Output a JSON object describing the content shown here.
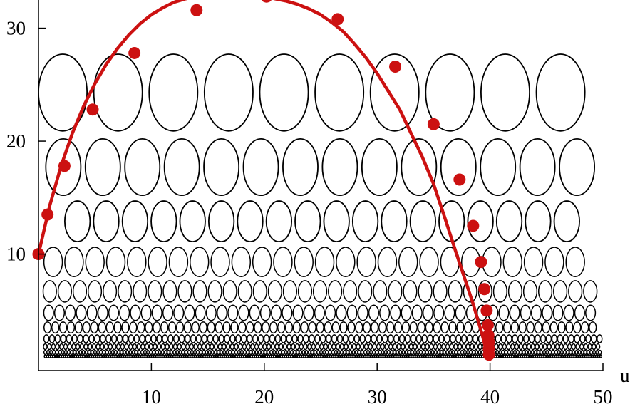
{
  "chart_data": {
    "type": "scatter",
    "title": "",
    "xlabel": "u",
    "ylabel": "",
    "xlim": [
      0,
      50
    ],
    "ylim": [
      -0.5,
      33
    ],
    "x_ticks": [
      10,
      20,
      30,
      40,
      50
    ],
    "y_ticks": [
      10,
      20,
      30
    ],
    "grid": false,
    "legend": "none",
    "colors": {
      "curve": "#cc1111",
      "ellipse": "#000000",
      "axis": "#000000"
    },
    "ellipse_rows": [
      {
        "y_center": 24.3,
        "y_radius": 3.4,
        "x_radius": 2.15,
        "x_start": 2.15,
        "x_step": 4.9,
        "x_max": 48
      },
      {
        "y_center": 17.7,
        "y_radius": 2.5,
        "x_radius": 1.55,
        "x_start": 2.2,
        "x_step": 3.5,
        "x_max": 49
      },
      {
        "y_center": 12.9,
        "y_radius": 1.8,
        "x_radius": 1.12,
        "x_start": 0.9,
        "x_step": 2.55,
        "x_max": 50
      },
      {
        "y_center": 9.3,
        "y_radius": 1.3,
        "x_radius": 0.82,
        "x_start": 1.3,
        "x_step": 1.85,
        "x_max": 50
      },
      {
        "y_center": 6.7,
        "y_radius": 0.95,
        "x_radius": 0.59,
        "x_start": 1.0,
        "x_step": 1.33,
        "x_max": 50
      },
      {
        "y_center": 4.8,
        "y_radius": 0.68,
        "x_radius": 0.43,
        "x_start": 0.9,
        "x_step": 0.96,
        "x_max": 50
      },
      {
        "y_center": 3.5,
        "y_radius": 0.49,
        "x_radius": 0.31,
        "x_start": 0.8,
        "x_step": 0.69,
        "x_max": 50
      },
      {
        "y_center": 2.5,
        "y_radius": 0.35,
        "x_radius": 0.22,
        "x_start": 0.7,
        "x_step": 0.5,
        "x_max": 50
      },
      {
        "y_center": 1.8,
        "y_radius": 0.25,
        "x_radius": 0.16,
        "x_start": 0.6,
        "x_step": 0.36,
        "x_max": 50
      },
      {
        "y_center": 1.3,
        "y_radius": 0.18,
        "x_radius": 0.115,
        "x_start": 0.6,
        "x_step": 0.26,
        "x_max": 50
      },
      {
        "y_center": 0.95,
        "y_radius": 0.13,
        "x_radius": 0.083,
        "x_start": 0.6,
        "x_step": 0.19,
        "x_max": 50
      }
    ],
    "series": [
      {
        "type": "line",
        "x": [
          0,
          1,
          2,
          3,
          4,
          5,
          6,
          7,
          8,
          9,
          10,
          11,
          12,
          13,
          14,
          15,
          16,
          17,
          18,
          19,
          20,
          21,
          22,
          23,
          24,
          25,
          26,
          27,
          28,
          29,
          30,
          31,
          32,
          33,
          34,
          35,
          36,
          37,
          37.5,
          38,
          38.5,
          39,
          39.3,
          39.6,
          39.8,
          40
        ],
        "y": [
          10,
          14.3,
          17.8,
          20.7,
          23.1,
          25.1,
          26.8,
          28.2,
          29.4,
          30.4,
          31.2,
          31.8,
          32.3,
          32.6,
          32.8,
          32.9,
          32.9,
          32.9,
          32.9,
          32.8,
          32.8,
          32.6,
          32.4,
          32.1,
          31.7,
          31.2,
          30.5,
          29.7,
          28.6,
          27.4,
          26.0,
          24.4,
          22.8,
          20.7,
          18.6,
          16.2,
          13.2,
          10.1,
          8.6,
          7.1,
          5.6,
          3.9,
          2.9,
          1.7,
          0.9,
          0.7
        ]
      },
      {
        "type": "points",
        "x": [
          0,
          0.8,
          2.3,
          4.8,
          8.5,
          14.0,
          20.2,
          26.5,
          31.6,
          35.0,
          37.3,
          38.5,
          39.2,
          39.5,
          39.7,
          39.8,
          39.85,
          39.9,
          39.9,
          39.9
        ],
        "y": [
          10.0,
          13.5,
          17.8,
          22.8,
          27.8,
          31.6,
          32.8,
          30.8,
          26.6,
          21.5,
          16.6,
          12.5,
          9.3,
          6.9,
          5.0,
          3.7,
          2.8,
          2.2,
          1.6,
          1.1
        ]
      }
    ]
  }
}
